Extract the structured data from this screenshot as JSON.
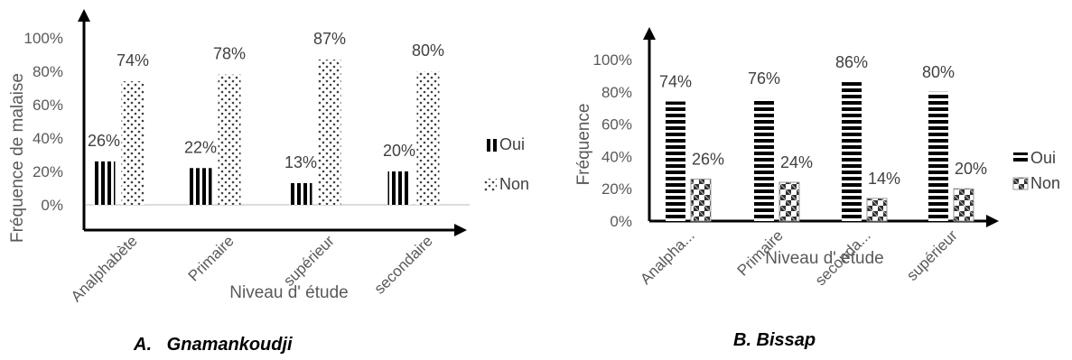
{
  "chart_data": [
    {
      "type": "bar",
      "caption": "A.   Gnamankoudji",
      "categories": [
        "Analphabète",
        "Primaire",
        "supérieur",
        "secondaire"
      ],
      "series": [
        {
          "name": "Oui",
          "values": [
            26,
            22,
            13,
            20
          ],
          "labels": [
            "26%",
            "22%",
            "13%",
            "20%"
          ]
        },
        {
          "name": "Non",
          "values": [
            74,
            78,
            87,
            80
          ],
          "labels": [
            "74%",
            "78%",
            "87%",
            "80%"
          ]
        }
      ],
      "xlabel": "Niveau d' étude",
      "ylabel": "Fréquence de malaise",
      "ylim": [
        0,
        100
      ],
      "yticks": [
        "0%",
        "20%",
        "40%",
        "60%",
        "80%",
        "100%"
      ],
      "legend": "right",
      "grid": false
    },
    {
      "type": "bar",
      "caption": "B. Bissap",
      "categories": [
        "Analpha...",
        "Primaire",
        "seconda...",
        "supérieur"
      ],
      "series": [
        {
          "name": "Oui",
          "values": [
            74,
            76,
            86,
            80
          ],
          "labels": [
            "74%",
            "76%",
            "86%",
            "80%"
          ]
        },
        {
          "name": "Non",
          "values": [
            26,
            24,
            14,
            20
          ],
          "labels": [
            "26%",
            "24%",
            "14%",
            "20%"
          ]
        }
      ],
      "xlabel": "Niveau d' étude",
      "ylabel": "Fréquence",
      "ylim": [
        0,
        100
      ],
      "yticks": [
        "0%",
        "20%",
        "40%",
        "60%",
        "80%",
        "100%"
      ],
      "legend": "right",
      "grid": false
    }
  ]
}
